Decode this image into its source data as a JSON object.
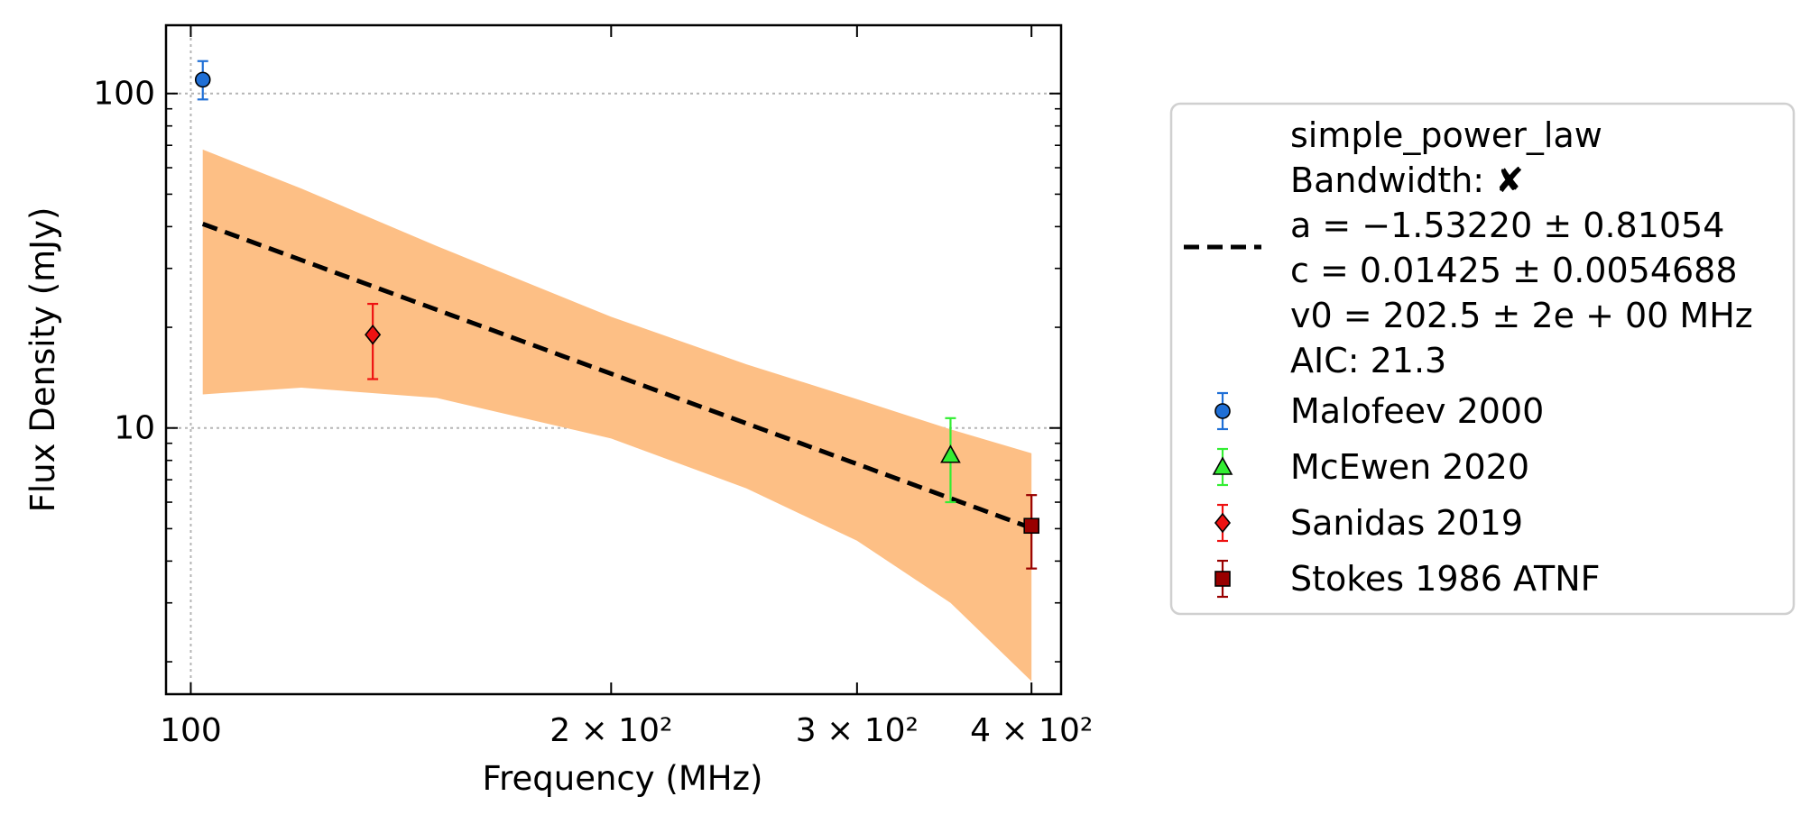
{
  "chart_data": {
    "type": "scatter",
    "xlabel": "Frequency (MHz)",
    "ylabel": "Flux Density (mJy)",
    "x_scale": "log",
    "y_scale": "log",
    "xlim": [
      96,
      420
    ],
    "ylim": [
      1.6,
      160
    ],
    "x_ticks": [
      {
        "value": 100,
        "label": "100"
      },
      {
        "value": 200,
        "label": "2 × 10²"
      },
      {
        "value": 300,
        "label": "3 × 10²"
      },
      {
        "value": 400,
        "label": "4 × 10²"
      }
    ],
    "y_ticks": [
      {
        "value": 10,
        "label": "10"
      },
      {
        "value": 100,
        "label": "100"
      }
    ],
    "grid": true,
    "legend_position": "right, outside plot",
    "fit": {
      "model": "simple_power_law",
      "legend_lines": [
        "simple_power_law",
        "Bandwidth: ✘",
        "a = −1.53220 ± 0.81054",
        "c = 0.01425 ± 0.0054688",
        "v0 = 202.5 ± 2e + 00 MHz",
        "AIC: 21.3"
      ],
      "a": -1.5322,
      "c": 0.01425,
      "v0": 202.5,
      "x_range": [
        102,
        400
      ],
      "line_color": "#000000",
      "band_color": "#fdbf85",
      "band_upper": [
        {
          "x": 102,
          "y": 68
        },
        {
          "x": 120,
          "y": 52
        },
        {
          "x": 150,
          "y": 35
        },
        {
          "x": 200,
          "y": 21.5
        },
        {
          "x": 250,
          "y": 15.5
        },
        {
          "x": 300,
          "y": 12.2
        },
        {
          "x": 350,
          "y": 9.9
        },
        {
          "x": 400,
          "y": 8.4
        }
      ],
      "band_lower": [
        {
          "x": 102,
          "y": 12.6
        },
        {
          "x": 120,
          "y": 13.2
        },
        {
          "x": 150,
          "y": 12.3
        },
        {
          "x": 200,
          "y": 9.3
        },
        {
          "x": 250,
          "y": 6.6
        },
        {
          "x": 300,
          "y": 4.6
        },
        {
          "x": 350,
          "y": 3.0
        },
        {
          "x": 400,
          "y": 1.75
        }
      ]
    },
    "series": [
      {
        "name": "Malofeev 2000",
        "marker": "circle",
        "color": "#1f6fd6",
        "ecolor": "#1f6fd6",
        "points": [
          {
            "x": 102,
            "y": 110,
            "y_low": 96,
            "y_high": 125
          }
        ]
      },
      {
        "name": "McEwen 2020",
        "marker": "triangle",
        "color": "#33ee33",
        "ecolor": "#33ee33",
        "points": [
          {
            "x": 350,
            "y": 8.3,
            "y_low": 6.0,
            "y_high": 10.7
          }
        ]
      },
      {
        "name": "Sanidas 2019",
        "marker": "diamond",
        "color": "#ee1111",
        "ecolor": "#ee1111",
        "points": [
          {
            "x": 135,
            "y": 19,
            "y_low": 14,
            "y_high": 23.5
          }
        ]
      },
      {
        "name": "Stokes 1986 ATNF",
        "marker": "square",
        "color": "#990000",
        "ecolor": "#990000",
        "points": [
          {
            "x": 400,
            "y": 5.1,
            "y_low": 3.8,
            "y_high": 6.3
          }
        ]
      }
    ]
  }
}
